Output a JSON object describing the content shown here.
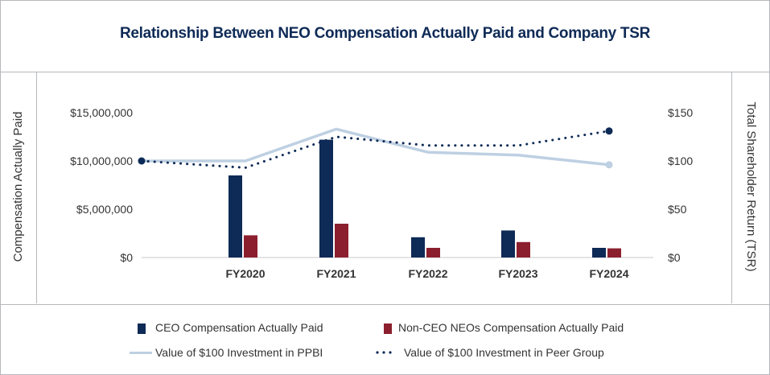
{
  "chart_data": {
    "type": "bar",
    "title": "Relationship Between NEO Compensation Actually Paid and Company TSR",
    "ylabel": "Compensation Actually Paid",
    "y2label": "Total Shareholder Return (TSR)",
    "ylim": [
      0,
      15000000
    ],
    "y2lim": [
      0,
      150
    ],
    "yticks": [
      "$0",
      "$5,000,000",
      "$10,000,000",
      "$15,000,000"
    ],
    "y2ticks": [
      "$0",
      "$50",
      "$100",
      "$150"
    ],
    "categories": [
      "FY2020",
      "FY2021",
      "FY2022",
      "FY2023",
      "FY2024"
    ],
    "series": [
      {
        "name": "CEO Compensation Actually Paid",
        "kind": "bar",
        "axis": "left",
        "color": "#0e2a56",
        "values": [
          8500000,
          12200000,
          2100000,
          2800000,
          1000000
        ]
      },
      {
        "name": "Non-CEO NEOs Compensation Actually Paid",
        "kind": "bar",
        "axis": "left",
        "color": "#8b1f2e",
        "values": [
          2300000,
          3500000,
          1000000,
          1600000,
          950000
        ]
      },
      {
        "name": "Value of $100 Investment in PPBI",
        "kind": "line",
        "axis": "right",
        "color": "#bed0e2",
        "start": 100,
        "values": [
          100,
          133,
          109,
          106,
          96
        ]
      },
      {
        "name": "Value of $100 Investment in Peer Group",
        "kind": "dotted-line",
        "axis": "right",
        "color": "#0e2a56",
        "start": 100,
        "values": [
          93,
          125,
          116,
          116,
          131
        ]
      }
    ],
    "grid": false,
    "legend_position": "bottom"
  }
}
